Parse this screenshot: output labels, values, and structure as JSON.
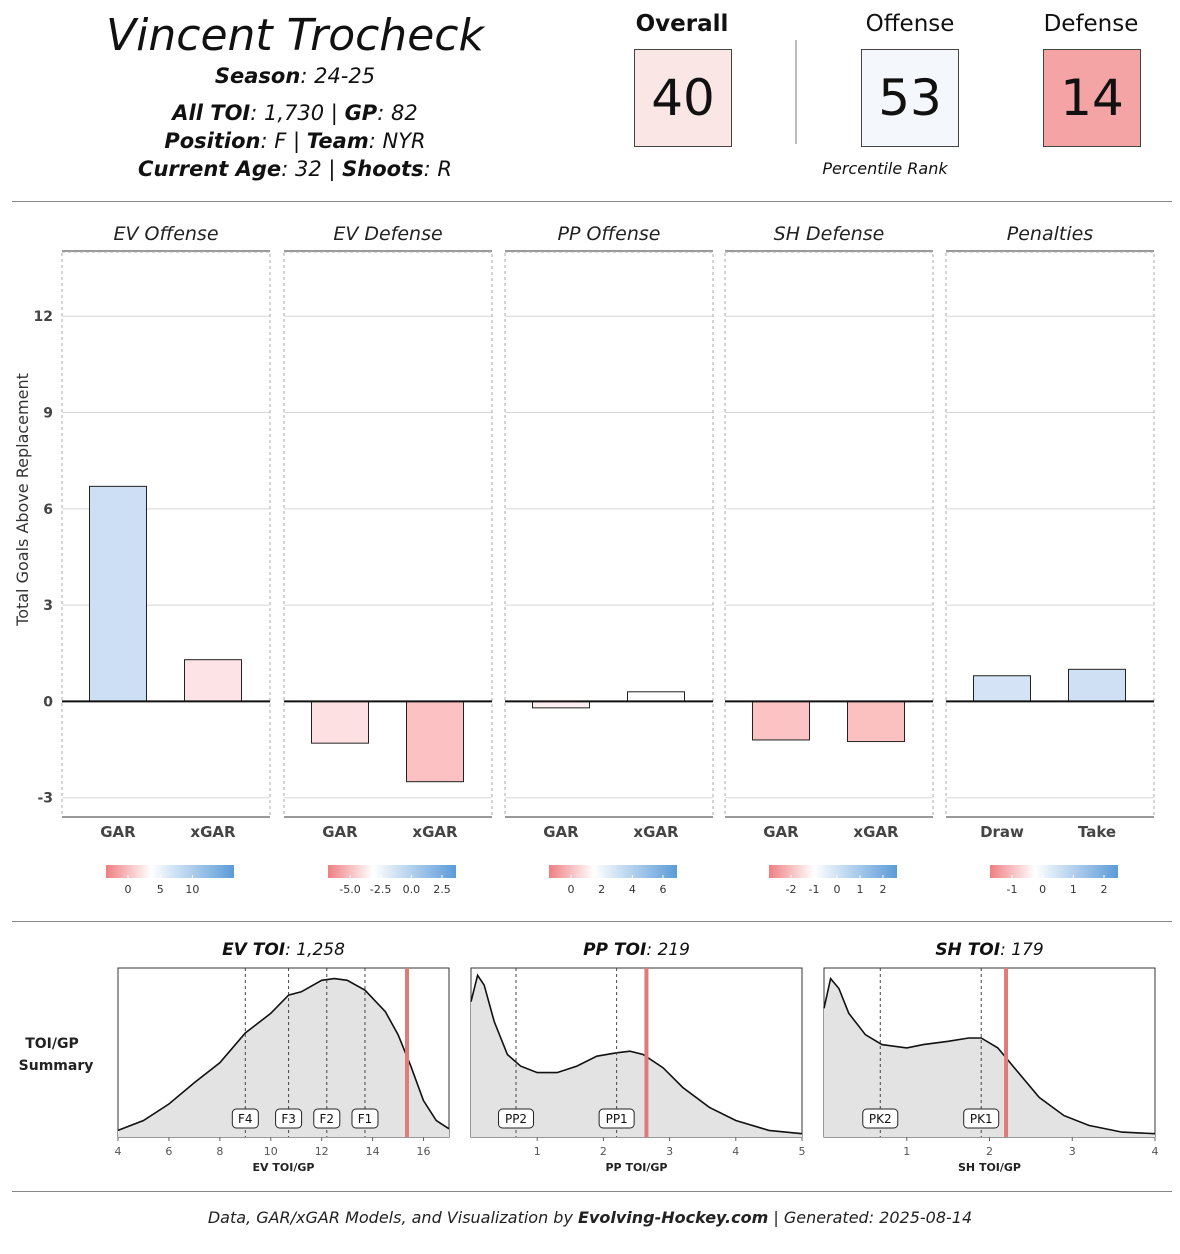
{
  "header": {
    "player_name": "Vincent Trocheck",
    "season_label": "Season",
    "season_value": "24-25",
    "toi_label": "All TOI",
    "toi_value": "1,730",
    "gp_label": "GP",
    "gp_value": "82",
    "position_label": "Position",
    "position_value": "F",
    "team_label": "Team",
    "team_value": "NYR",
    "age_label": "Current Age",
    "age_value": "32",
    "shoots_label": "Shoots",
    "shoots_value": "R"
  },
  "percentiles": {
    "caption": "Percentile Rank",
    "items": [
      {
        "label": "Overall",
        "value": "40",
        "color": "#fbe6e6",
        "bold": true
      },
      {
        "label": "Offense",
        "value": "53",
        "color": "#f4f8fc",
        "bold": false
      },
      {
        "label": "Defense",
        "value": "14",
        "color": "#f4a4a4",
        "bold": false
      }
    ]
  },
  "chart_data": [
    {
      "type": "bar",
      "ylabel": "Total Goals Above Replacement",
      "ylim": [
        -3.6,
        14
      ],
      "yticks": [
        12,
        9,
        6,
        3,
        0,
        -3
      ],
      "panels": [
        {
          "title": "EV Offense",
          "categories": [
            "GAR",
            "xGAR"
          ],
          "values": [
            6.7,
            1.3
          ],
          "bar_colors": [
            "#cddff4",
            "#fde3e5"
          ],
          "legend_ticks": [
            "0",
            "5",
            "10"
          ]
        },
        {
          "title": "EV Defense",
          "categories": [
            "GAR",
            "xGAR"
          ],
          "values": [
            -1.3,
            -2.5
          ],
          "bar_colors": [
            "#fde1e2",
            "#fcc2c3"
          ],
          "legend_ticks": [
            "-5.0",
            "-2.5",
            "0.0",
            "2.5"
          ]
        },
        {
          "title": "PP Offense",
          "categories": [
            "GAR",
            "xGAR"
          ],
          "values": [
            -0.2,
            0.3
          ],
          "bar_colors": [
            "#fdf0f0",
            "#ffffff"
          ],
          "legend_ticks": [
            "0",
            "2",
            "4",
            "6"
          ]
        },
        {
          "title": "SH Defense",
          "categories": [
            "GAR",
            "xGAR"
          ],
          "values": [
            -1.2,
            -1.25
          ],
          "bar_colors": [
            "#fbc3c3",
            "#fbc0c0"
          ],
          "legend_ticks": [
            "-2",
            "-1",
            "0",
            "1",
            "2"
          ]
        },
        {
          "title": "Penalties",
          "categories": [
            "Draw",
            "Take"
          ],
          "values": [
            0.8,
            1.0
          ],
          "bar_colors": [
            "#d4e4f6",
            "#cfe0f5"
          ],
          "legend_ticks": [
            "-1",
            "0",
            "1",
            "2"
          ]
        }
      ]
    },
    {
      "type": "area",
      "row_label_line1": "TOI/GP",
      "row_label_line2": "Summary",
      "panels": [
        {
          "title_label": "EV TOI",
          "title_value": "1,258",
          "xlabel": "EV TOI/GP",
          "xlim": [
            4,
            17
          ],
          "xticks": [
            4,
            6,
            8,
            10,
            12,
            14,
            16
          ],
          "player_value": 15.35,
          "markers": [
            {
              "label": "F4",
              "x": 9.0
            },
            {
              "label": "F3",
              "x": 10.7
            },
            {
              "label": "F2",
              "x": 12.2
            },
            {
              "label": "F1",
              "x": 13.7
            }
          ],
          "density": [
            [
              4,
              0.04
            ],
            [
              5,
              0.1
            ],
            [
              6,
              0.2
            ],
            [
              7,
              0.33
            ],
            [
              8,
              0.45
            ],
            [
              9,
              0.63
            ],
            [
              10,
              0.75
            ],
            [
              10.7,
              0.86
            ],
            [
              11.2,
              0.88
            ],
            [
              12,
              0.95
            ],
            [
              12.5,
              0.96
            ],
            [
              13,
              0.95
            ],
            [
              13.7,
              0.89
            ],
            [
              14.5,
              0.76
            ],
            [
              15,
              0.62
            ],
            [
              15.5,
              0.43
            ],
            [
              16,
              0.22
            ],
            [
              16.5,
              0.1
            ],
            [
              17,
              0.05
            ]
          ]
        },
        {
          "title_label": "PP TOI",
          "title_value": "219",
          "xlabel": "PP TOI/GP",
          "xlim": [
            0,
            5
          ],
          "xticks": [
            1,
            2,
            3,
            4,
            5
          ],
          "player_value": 2.65,
          "markers": [
            {
              "label": "PP2",
              "x": 0.68
            },
            {
              "label": "PP1",
              "x": 2.2
            }
          ],
          "density": [
            [
              0,
              0.82
            ],
            [
              0.1,
              0.98
            ],
            [
              0.2,
              0.92
            ],
            [
              0.35,
              0.7
            ],
            [
              0.55,
              0.5
            ],
            [
              0.75,
              0.43
            ],
            [
              1.0,
              0.39
            ],
            [
              1.3,
              0.39
            ],
            [
              1.6,
              0.43
            ],
            [
              1.9,
              0.49
            ],
            [
              2.2,
              0.51
            ],
            [
              2.4,
              0.52
            ],
            [
              2.6,
              0.5
            ],
            [
              2.9,
              0.42
            ],
            [
              3.2,
              0.3
            ],
            [
              3.6,
              0.18
            ],
            [
              4.0,
              0.1
            ],
            [
              4.5,
              0.04
            ],
            [
              5,
              0.02
            ]
          ]
        },
        {
          "title_label": "SH TOI",
          "title_value": "179",
          "xlabel": "SH TOI/GP",
          "xlim": [
            0,
            4
          ],
          "xticks": [
            1,
            2,
            3,
            4
          ],
          "player_value": 2.2,
          "markers": [
            {
              "label": "PK2",
              "x": 0.68
            },
            {
              "label": "PK1",
              "x": 1.9
            }
          ],
          "density": [
            [
              0,
              0.78
            ],
            [
              0.08,
              0.96
            ],
            [
              0.18,
              0.9
            ],
            [
              0.3,
              0.75
            ],
            [
              0.5,
              0.62
            ],
            [
              0.7,
              0.56
            ],
            [
              1.0,
              0.54
            ],
            [
              1.2,
              0.56
            ],
            [
              1.5,
              0.58
            ],
            [
              1.75,
              0.6
            ],
            [
              1.9,
              0.6
            ],
            [
              2.1,
              0.54
            ],
            [
              2.3,
              0.42
            ],
            [
              2.6,
              0.24
            ],
            [
              2.9,
              0.13
            ],
            [
              3.2,
              0.07
            ],
            [
              3.6,
              0.03
            ],
            [
              4,
              0.02
            ]
          ]
        }
      ]
    }
  ],
  "footer": {
    "prefix": "Data, GAR/xGAR Models, and Visualization by",
    "brand": "Evolving-Hockey.com",
    "suffix": "| Generated: 2025-08-14"
  }
}
